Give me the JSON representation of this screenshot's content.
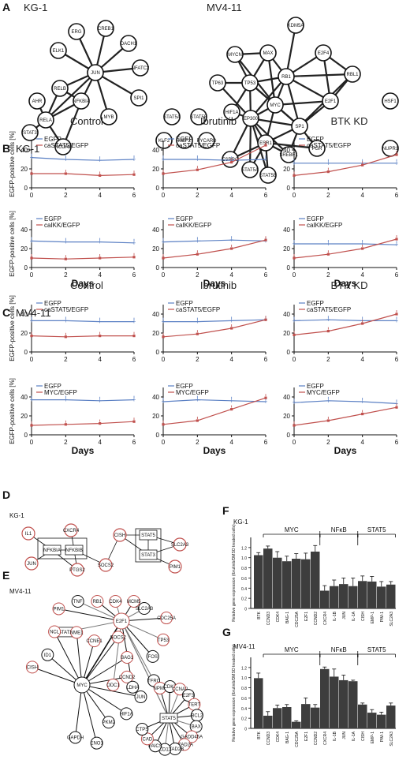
{
  "panels": {
    "a": {
      "label": "A",
      "left_title": "KG-1",
      "right_title": "MV4-11"
    },
    "b": {
      "label": "B",
      "title": "KG-1"
    },
    "c": {
      "label": "C",
      "title": "MV4-11"
    },
    "d": {
      "label": "D",
      "title": "KG-1"
    },
    "e": {
      "label": "E",
      "title": "MV4-11"
    },
    "f": {
      "label": "F",
      "title": "KG-1"
    },
    "g": {
      "label": "G",
      "title": "MV4-11"
    }
  },
  "networks": {
    "kg1": {
      "nodes": [
        "ERG",
        "CREB1",
        "DACH1",
        "NFATC2",
        "SPI1",
        "MYB",
        "JUN",
        "ELK1",
        "RELB",
        "AHR",
        "RELA",
        "NFKBIA",
        "STAT3",
        "NCOR2",
        "STAT5A",
        "STAT5B",
        "KLF2",
        "MEF2",
        "PYCARD"
      ],
      "edges": [
        [
          "JUN",
          "ERG"
        ],
        [
          "JUN",
          "CREB1"
        ],
        [
          "JUN",
          "DACH1"
        ],
        [
          "JUN",
          "NFATC2"
        ],
        [
          "JUN",
          "SPI1"
        ],
        [
          "JUN",
          "MYB"
        ],
        [
          "JUN",
          "ELK1"
        ],
        [
          "JUN",
          "RELB"
        ],
        [
          "JUN",
          "NFKBIA"
        ],
        [
          "JUN",
          "RELA"
        ],
        [
          "RELB",
          "RELA"
        ],
        [
          "RELB",
          "NFKBIA"
        ],
        [
          "RELA",
          "AHR"
        ],
        [
          "RELA",
          "STAT3"
        ],
        [
          "RELA",
          "NCOR2"
        ],
        [
          "RELA",
          "NFKBIA"
        ],
        [
          "NFKBIA",
          "NCOR2"
        ]
      ]
    },
    "mv411": {
      "nodes": [
        "KDM5A",
        "MYCN",
        "MAX",
        "E2F4",
        "RB1",
        "RBL1",
        "TP63",
        "TP53",
        "HIF1A",
        "MYC",
        "E2F1",
        "EP300",
        "SP1",
        "HSF1",
        "ESR1",
        "PGR",
        "NUPR1",
        "SREBF1",
        "ESRRG",
        "STAT5A",
        "STAT5B"
      ],
      "edges": [
        [
          "MYCN",
          "MAX"
        ],
        [
          "MYCN",
          "MYC"
        ],
        [
          "MYCN",
          "TP53"
        ],
        [
          "MAX",
          "MYC"
        ],
        [
          "MAX",
          "RB1"
        ],
        [
          "MAX",
          "TP53"
        ],
        [
          "KDM5A",
          "RB1"
        ],
        [
          "RB1",
          "E2F4"
        ],
        [
          "RB1",
          "RBL1"
        ],
        [
          "RB1",
          "E2F1"
        ],
        [
          "RB1",
          "MYC"
        ],
        [
          "RB1",
          "TP53"
        ],
        [
          "RB1",
          "SP1"
        ],
        [
          "RB1",
          "EP300"
        ],
        [
          "E2F4",
          "RBL1"
        ],
        [
          "E2F4",
          "E2F1"
        ],
        [
          "RBL1",
          "E2F1"
        ],
        [
          "RBL1",
          "SP1"
        ],
        [
          "TP63",
          "TP53"
        ],
        [
          "TP63",
          "EP300"
        ],
        [
          "TP53",
          "EP300"
        ],
        [
          "TP53",
          "MYC"
        ],
        [
          "TP53",
          "SP1"
        ],
        [
          "TP53",
          "HIF1A"
        ],
        [
          "HIF1A",
          "EP300"
        ],
        [
          "MYC",
          "EP300"
        ],
        [
          "MYC",
          "SP1"
        ],
        [
          "MYC",
          "ESR1"
        ],
        [
          "MYC",
          "E2F1"
        ],
        [
          "E2F1",
          "SP1"
        ],
        [
          "SP1",
          "EP300"
        ],
        [
          "SP1",
          "ESR1"
        ],
        [
          "SP1",
          "PGR"
        ],
        [
          "SP1",
          "SREBF1"
        ],
        [
          "EP300",
          "ESR1"
        ],
        [
          "EP300",
          "ESRRG"
        ],
        [
          "EP300",
          "STAT5A"
        ],
        [
          "EP300",
          "STAT5B"
        ],
        [
          "EP300",
          "SREBF1"
        ],
        [
          "ESR1",
          "SREBF1"
        ],
        [
          "ESR1",
          "ESRRG"
        ],
        [
          "ESR1",
          "STAT5A"
        ],
        [
          "ESR1",
          "STAT5B"
        ],
        [
          "ESR1",
          "PGR"
        ]
      ]
    },
    "d_kg1": {
      "nodes": [
        "IL1",
        "CXCR4",
        "NFKBIA",
        "NFKBIB",
        "JUN",
        "PTGS2",
        "SOCS2",
        "CISH",
        "STAT5",
        "STAT3",
        "SLC2A3",
        "PIM1"
      ]
    },
    "e_mv411": {
      "labels": [
        "MYC",
        "E2F1",
        "STAT5",
        "STAT3",
        "CISH",
        "PIM1",
        "ID1",
        "TNF",
        "NCL",
        "RB1",
        "NME1",
        "CDK4",
        "CCNE1",
        "MCM5",
        "SOCS2",
        "SLC2A3",
        "BAG1",
        "CDC25A",
        "CCND2",
        "TP53",
        "JUN",
        "FOS",
        "HIF1A",
        "TFRC",
        "PKM2",
        "LDHA",
        "ENO1",
        "ODC1",
        "GAPDH",
        "NPM1",
        "CDK2",
        "CCNA2",
        "E2F3",
        "TERT",
        "BCL2",
        "BAX",
        "GADD45A",
        "ATAD2A",
        "ATAD2B",
        "CD11",
        "PAICS",
        "CAD",
        "CTPS"
      ]
    }
  },
  "line_charts": {
    "x_ticks": [
      "0",
      "2",
      "4",
      "6"
    ],
    "xlabel": "Days",
    "ylabel": "EGFP-positive cells [%]",
    "col_titles": [
      "Control",
      "Ibrutinib",
      "BTK KD"
    ],
    "y_ticks": [
      "0",
      "20",
      "40"
    ],
    "series_colors": {
      "egfp": "#5b80c4",
      "construct": "#c0504d"
    }
  },
  "chart_data": [
    {
      "type": "line",
      "panel": "B",
      "cell_line": "KG-1",
      "condition": "Control",
      "construct": "caSTAT5",
      "x": [
        0,
        2,
        4,
        6
      ],
      "ylim": [
        0,
        50
      ],
      "series": [
        {
          "name": "EGFP",
          "values": [
            32,
            30,
            29,
            30
          ]
        },
        {
          "name": "caSTAT5/EGFP",
          "values": [
            15,
            15,
            13,
            14
          ]
        }
      ]
    },
    {
      "type": "line",
      "panel": "B",
      "cell_line": "KG-1",
      "condition": "Ibrutinib",
      "construct": "caSTAT5",
      "x": [
        0,
        2,
        4,
        6
      ],
      "ylim": [
        0,
        50
      ],
      "series": [
        {
          "name": "EGFP",
          "values": [
            30,
            30,
            29,
            30
          ]
        },
        {
          "name": "caSTAT5/EGFP",
          "values": [
            15,
            19,
            27,
            45
          ]
        }
      ]
    },
    {
      "type": "line",
      "panel": "B",
      "cell_line": "KG-1",
      "condition": "BTK KD",
      "construct": "caSTAT5",
      "x": [
        0,
        2,
        4,
        6
      ],
      "ylim": [
        0,
        50
      ],
      "series": [
        {
          "name": "EGFP",
          "values": [
            26,
            26,
            26,
            26
          ]
        },
        {
          "name": "caSTAT5/EGFP",
          "values": [
            13,
            17,
            24,
            35
          ]
        }
      ]
    },
    {
      "type": "line",
      "panel": "B",
      "cell_line": "KG-1",
      "condition": "Control",
      "construct": "caIKK",
      "x": [
        0,
        2,
        4,
        6
      ],
      "ylim": [
        0,
        50
      ],
      "series": [
        {
          "name": "EGFP",
          "values": [
            28,
            27,
            27,
            26
          ]
        },
        {
          "name": "caIKK/EGFP",
          "values": [
            10,
            9,
            10,
            11
          ]
        }
      ]
    },
    {
      "type": "line",
      "panel": "B",
      "cell_line": "KG-1",
      "condition": "Ibrutinib",
      "construct": "caIKK",
      "x": [
        0,
        2,
        4,
        6
      ],
      "ylim": [
        0,
        50
      ],
      "series": [
        {
          "name": "EGFP",
          "values": [
            27,
            28,
            29,
            28
          ]
        },
        {
          "name": "caIKK/EGFP",
          "values": [
            10,
            14,
            20,
            29
          ]
        }
      ]
    },
    {
      "type": "line",
      "panel": "B",
      "cell_line": "KG-1",
      "condition": "BTK KD",
      "construct": "caIKK",
      "x": [
        0,
        2,
        4,
        6
      ],
      "ylim": [
        0,
        50
      ],
      "series": [
        {
          "name": "EGFP",
          "values": [
            25,
            25,
            25,
            24
          ]
        },
        {
          "name": "caIKK/EGFP",
          "values": [
            10,
            14,
            20,
            30
          ]
        }
      ]
    },
    {
      "type": "line",
      "panel": "C",
      "cell_line": "MV4-11",
      "condition": "Control",
      "construct": "caSTAT5",
      "x": [
        0,
        2,
        4,
        6
      ],
      "ylim": [
        0,
        50
      ],
      "series": [
        {
          "name": "EGFP",
          "values": [
            33,
            33,
            32,
            32
          ]
        },
        {
          "name": "caSTAT5/EGFP",
          "values": [
            17,
            16,
            17,
            17
          ]
        }
      ]
    },
    {
      "type": "line",
      "panel": "C",
      "cell_line": "MV4-11",
      "condition": "Ibrutinib",
      "construct": "caSTAT5",
      "x": [
        0,
        2,
        4,
        6
      ],
      "ylim": [
        0,
        50
      ],
      "series": [
        {
          "name": "EGFP",
          "values": [
            32,
            32,
            33,
            34
          ]
        },
        {
          "name": "caSTAT5/EGFP",
          "values": [
            16,
            19,
            25,
            34
          ]
        }
      ]
    },
    {
      "type": "line",
      "panel": "C",
      "cell_line": "MV4-11",
      "condition": "BTK KD",
      "construct": "caSTAT5",
      "x": [
        0,
        2,
        4,
        6
      ],
      "ylim": [
        0,
        50
      ],
      "series": [
        {
          "name": "EGFP",
          "values": [
            33,
            34,
            33,
            33
          ]
        },
        {
          "name": "caSTAT5/EGFP",
          "values": [
            18,
            22,
            30,
            40
          ]
        }
      ]
    },
    {
      "type": "line",
      "panel": "C",
      "cell_line": "MV4-11",
      "condition": "Control",
      "construct": "MYC",
      "x": [
        0,
        2,
        4,
        6
      ],
      "ylim": [
        0,
        50
      ],
      "series": [
        {
          "name": "EGFP",
          "values": [
            37,
            37,
            36,
            37
          ]
        },
        {
          "name": "MYC/EGFP",
          "values": [
            10,
            11,
            12,
            14
          ]
        }
      ]
    },
    {
      "type": "line",
      "panel": "C",
      "cell_line": "MV4-11",
      "condition": "Ibrutinib",
      "construct": "MYC",
      "x": [
        0,
        2,
        4,
        6
      ],
      "ylim": [
        0,
        50
      ],
      "series": [
        {
          "name": "EGFP",
          "values": [
            35,
            37,
            36,
            35
          ]
        },
        {
          "name": "MYC/EGFP",
          "values": [
            11,
            15,
            27,
            39
          ]
        }
      ]
    },
    {
      "type": "line",
      "panel": "C",
      "cell_line": "MV4-11",
      "condition": "BTK KD",
      "construct": "MYC",
      "x": [
        0,
        2,
        4,
        6
      ],
      "ylim": [
        0,
        50
      ],
      "series": [
        {
          "name": "EGFP",
          "values": [
            34,
            36,
            35,
            33
          ]
        },
        {
          "name": "MYC/EGFP",
          "values": [
            10,
            15,
            22,
            29
          ]
        }
      ]
    },
    {
      "type": "bar",
      "panel": "F",
      "title": "KG-1",
      "categories": [
        "BTK",
        "CCND3",
        "CDK4",
        "BAG-1",
        "CDC25A",
        "E2F1",
        "CCND2",
        "CXCR4",
        "IL-1B",
        "JUN",
        "IL-1A",
        "CISH",
        "EMP-1",
        "PIM-1",
        "SLC2A3"
      ],
      "values": [
        1.05,
        1.18,
        1.0,
        0.93,
        0.98,
        0.97,
        1.12,
        0.35,
        0.44,
        0.48,
        0.44,
        0.54,
        0.53,
        0.43,
        0.47
      ],
      "errors": [
        0.05,
        0.05,
        0.12,
        0.1,
        0.1,
        0.12,
        0.12,
        0.1,
        0.12,
        0.12,
        0.16,
        0.1,
        0.1,
        0.1,
        0.06
      ],
      "ylim": [
        0,
        1.4
      ],
      "yticks": [
        "0",
        "0.2",
        "0.4",
        "0.6",
        "0.8",
        "1.0",
        "1.2"
      ],
      "ylabel": "Relative gene expression (Ibrutinib/DMSO treated cells)",
      "groups": [
        {
          "name": "MYC",
          "from": 1,
          "to": 6
        },
        {
          "name": "NFκB",
          "from": 7,
          "to": 10
        },
        {
          "name": "STAT5",
          "from": 11,
          "to": 14
        }
      ]
    },
    {
      "type": "bar",
      "panel": "G",
      "title": "MV4-11",
      "categories": [
        "BTK",
        "CCND3",
        "CDK4",
        "BAG-1",
        "CDC25A",
        "E2F1",
        "CCND2",
        "CXCR4",
        "IL-1B",
        "JUN",
        "IL-1A",
        "CISH",
        "EMP-1",
        "PIM-1",
        "SLC2A3"
      ],
      "values": [
        0.99,
        0.25,
        0.4,
        0.42,
        0.13,
        0.48,
        0.41,
        1.17,
        1.02,
        0.95,
        0.93,
        0.47,
        0.31,
        0.27,
        0.45
      ],
      "errors": [
        0.1,
        0.08,
        0.06,
        0.05,
        0.02,
        0.12,
        0.06,
        0.04,
        0.15,
        0.1,
        0.02,
        0.03,
        0.06,
        0.05,
        0.05
      ],
      "ylim": [
        0,
        1.4
      ],
      "yticks": [
        "0",
        "0.2",
        "0.4",
        "0.6",
        "0.8",
        "1.0",
        "1.2"
      ],
      "ylabel": "Relative gene expression (Ibrutinib/DMSO treated cells)",
      "groups": [
        {
          "name": "MYC",
          "from": 1,
          "to": 6
        },
        {
          "name": "NFκB",
          "from": 7,
          "to": 10
        },
        {
          "name": "STAT5",
          "from": 11,
          "to": 14
        }
      ]
    }
  ]
}
